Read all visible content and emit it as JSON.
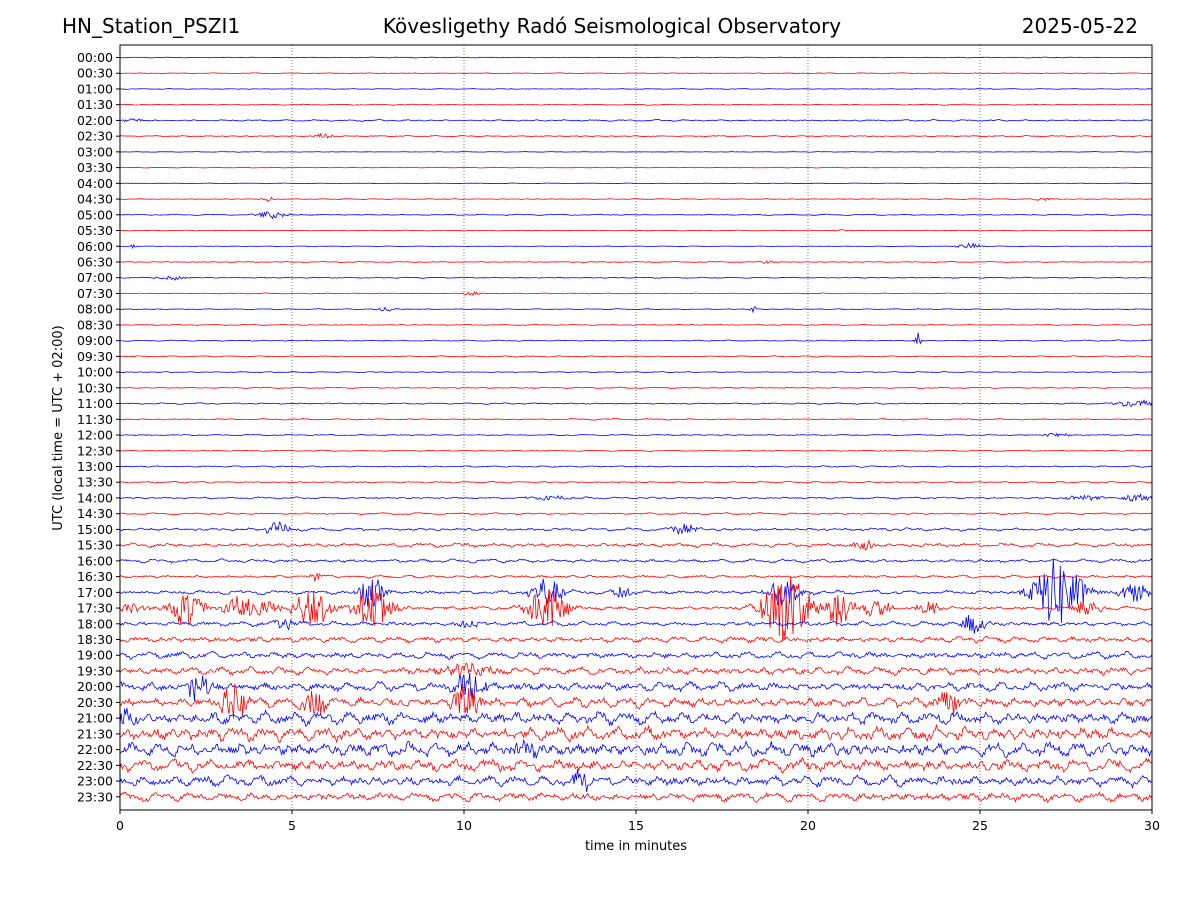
{
  "header": {
    "station": "HN_Station_PSZI1",
    "observatory": "Kövesligethy Radó Seismological Observatory",
    "date": "2025-05-22"
  },
  "chart_data": {
    "type": "line",
    "title": "Kövesligethy Radó Seismological Observatory",
    "xlabel": "time in minutes",
    "ylabel": "UTC (local time = UTC + 02:00)",
    "xlim": [
      0,
      30
    ],
    "x_ticks": [
      "0",
      "5",
      "10",
      "15",
      "20",
      "25",
      "30"
    ],
    "grid": "vertical dotted at 5-minute intervals",
    "row_labels": [
      "00:00",
      "00:30",
      "01:00",
      "01:30",
      "02:00",
      "02:30",
      "03:00",
      "03:30",
      "04:00",
      "04:30",
      "05:00",
      "05:30",
      "06:00",
      "06:30",
      "07:00",
      "07:30",
      "08:00",
      "08:30",
      "09:00",
      "09:30",
      "10:00",
      "10:30",
      "11:00",
      "11:30",
      "12:00",
      "12:30",
      "13:00",
      "13:30",
      "14:00",
      "14:30",
      "15:00",
      "15:30",
      "16:00",
      "16:30",
      "17:00",
      "17:30",
      "18:00",
      "18:30",
      "19:00",
      "19:30",
      "20:00",
      "20:30",
      "21:00",
      "21:30",
      "22:00",
      "22:30",
      "23:00",
      "23:30"
    ],
    "row_noise_level": [
      0.4,
      0.4,
      0.4,
      0.5,
      0.8,
      0.6,
      0.3,
      0.3,
      0.3,
      0.4,
      0.6,
      0.4,
      0.3,
      0.5,
      0.5,
      0.4,
      0.5,
      0.5,
      0.6,
      0.6,
      0.5,
      0.6,
      0.7,
      0.7,
      0.6,
      0.6,
      0.7,
      0.8,
      0.9,
      1.0,
      1.5,
      2.0,
      1.8,
      1.5,
      2.0,
      2.0,
      2.4,
      3.0,
      3.5,
      4.0,
      4.5,
      5.0,
      6.5,
      7.0,
      7.0,
      6.0,
      5.5,
      4.5
    ],
    "events": [
      {
        "row": 4,
        "t": 0.3,
        "amp": 2.5,
        "dur": 0.4
      },
      {
        "row": 5,
        "t": 5.9,
        "amp": 3,
        "dur": 0.3
      },
      {
        "row": 9,
        "t": 4.3,
        "amp": 3,
        "dur": 0.2
      },
      {
        "row": 9,
        "t": 26.8,
        "amp": 2,
        "dur": 0.3
      },
      {
        "row": 10,
        "t": 4.4,
        "amp": 5,
        "dur": 0.5
      },
      {
        "row": 11,
        "t": 21.0,
        "amp": 2,
        "dur": 0.3
      },
      {
        "row": 12,
        "t": 0.4,
        "amp": 3,
        "dur": 0.1
      },
      {
        "row": 12,
        "t": 24.7,
        "amp": 4,
        "dur": 0.4
      },
      {
        "row": 13,
        "t": 18.8,
        "amp": 2,
        "dur": 0.3
      },
      {
        "row": 14,
        "t": 1.5,
        "amp": 3,
        "dur": 0.5
      },
      {
        "row": 15,
        "t": 10.2,
        "amp": 2.5,
        "dur": 0.4
      },
      {
        "row": 16,
        "t": 7.7,
        "amp": 3,
        "dur": 0.3
      },
      {
        "row": 16,
        "t": 18.4,
        "amp": 4,
        "dur": 0.15
      },
      {
        "row": 18,
        "t": 23.2,
        "amp": 12,
        "dur": 0.1
      },
      {
        "row": 22,
        "t": 29.5,
        "amp": 5,
        "dur": 0.6
      },
      {
        "row": 24,
        "t": 27.2,
        "amp": 3,
        "dur": 0.4
      },
      {
        "row": 28,
        "t": 12.5,
        "amp": 3,
        "dur": 0.8
      },
      {
        "row": 28,
        "t": 28.0,
        "amp": 4,
        "dur": 0.6
      },
      {
        "row": 28,
        "t": 29.6,
        "amp": 4,
        "dur": 0.6
      },
      {
        "row": 30,
        "t": 4.6,
        "amp": 9,
        "dur": 0.4
      },
      {
        "row": 30,
        "t": 16.4,
        "amp": 9,
        "dur": 0.4
      },
      {
        "row": 31,
        "t": 21.6,
        "amp": 8,
        "dur": 0.3
      },
      {
        "row": 33,
        "t": 5.7,
        "amp": 8,
        "dur": 0.2
      },
      {
        "row": 34,
        "t": 7.3,
        "amp": 25,
        "dur": 0.4
      },
      {
        "row": 34,
        "t": 12.4,
        "amp": 20,
        "dur": 0.5
      },
      {
        "row": 34,
        "t": 14.6,
        "amp": 8,
        "dur": 0.3
      },
      {
        "row": 34,
        "t": 19.3,
        "amp": 18,
        "dur": 0.5
      },
      {
        "row": 34,
        "t": 27.3,
        "amp": 45,
        "dur": 0.8
      },
      {
        "row": 34,
        "t": 29.5,
        "amp": 12,
        "dur": 0.5
      },
      {
        "row": 35,
        "t": 0.4,
        "amp": 6,
        "dur": 0.6
      },
      {
        "row": 35,
        "t": 1.9,
        "amp": 22,
        "dur": 0.6
      },
      {
        "row": 35,
        "t": 3.5,
        "amp": 14,
        "dur": 0.5
      },
      {
        "row": 35,
        "t": 4.2,
        "amp": 10,
        "dur": 0.5
      },
      {
        "row": 35,
        "t": 5.6,
        "amp": 24,
        "dur": 0.6
      },
      {
        "row": 35,
        "t": 7.4,
        "amp": 30,
        "dur": 0.6
      },
      {
        "row": 35,
        "t": 12.4,
        "amp": 30,
        "dur": 0.6
      },
      {
        "row": 35,
        "t": 19.4,
        "amp": 45,
        "dur": 0.8
      },
      {
        "row": 35,
        "t": 20.9,
        "amp": 22,
        "dur": 0.5
      },
      {
        "row": 35,
        "t": 22.0,
        "amp": 12,
        "dur": 0.5
      },
      {
        "row": 35,
        "t": 23.5,
        "amp": 10,
        "dur": 0.4
      },
      {
        "row": 35,
        "t": 28.1,
        "amp": 12,
        "dur": 0.5
      },
      {
        "row": 36,
        "t": 4.8,
        "amp": 8,
        "dur": 0.4
      },
      {
        "row": 36,
        "t": 10.1,
        "amp": 8,
        "dur": 0.3
      },
      {
        "row": 36,
        "t": 24.8,
        "amp": 12,
        "dur": 0.5
      },
      {
        "row": 39,
        "t": 10.0,
        "amp": 10,
        "dur": 0.8
      },
      {
        "row": 40,
        "t": 2.3,
        "amp": 18,
        "dur": 0.4
      },
      {
        "row": 40,
        "t": 10.2,
        "amp": 22,
        "dur": 0.5
      },
      {
        "row": 41,
        "t": 3.3,
        "amp": 22,
        "dur": 0.5
      },
      {
        "row": 41,
        "t": 5.6,
        "amp": 18,
        "dur": 0.4
      },
      {
        "row": 41,
        "t": 10.0,
        "amp": 24,
        "dur": 0.5
      },
      {
        "row": 41,
        "t": 24.1,
        "amp": 15,
        "dur": 0.4
      },
      {
        "row": 42,
        "t": 0.2,
        "amp": 12,
        "dur": 0.4
      },
      {
        "row": 44,
        "t": 11.7,
        "amp": 15,
        "dur": 0.4
      },
      {
        "row": 46,
        "t": 13.4,
        "amp": 14,
        "dur": 0.3
      }
    ],
    "colors": {
      "even_rows": "#0000ff",
      "odd_rows": "#ff0000",
      "grid": "#555555",
      "axis": "#000000"
    }
  }
}
